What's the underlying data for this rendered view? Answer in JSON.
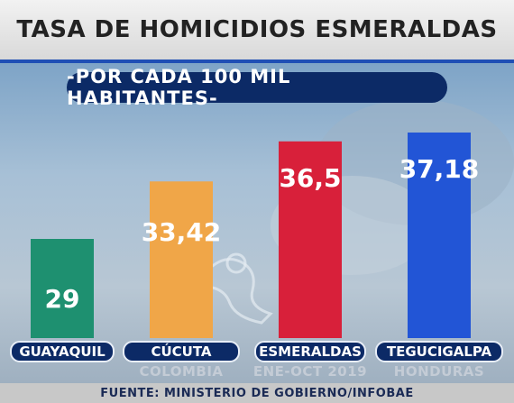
{
  "header": {
    "title": "TASA DE HOMICIDIOS ESMERALDAS",
    "subtitle": "-POR CADA 100 MIL HABITANTES-"
  },
  "footer": {
    "source": "FUENTE: MINISTERIO DE GOBIERNO/INFOBAE"
  },
  "chart_data": {
    "type": "bar",
    "title": "TASA DE HOMICIDIOS ESMERALDAS",
    "subtitle": "-POR CADA 100 MIL HABITANTES-",
    "categories": [
      "GUAYAQUIL",
      "CÚCUTA",
      "ESMERALDAS",
      "TEGUCIGALPA"
    ],
    "sublabels": [
      "",
      "COLOMBIA",
      "ENE-OCT 2019",
      "HONDURAS"
    ],
    "values": [
      29,
      33.42,
      36.5,
      37.18
    ],
    "value_labels": [
      "29",
      "33,42",
      "36,5",
      "37,18"
    ],
    "colors": [
      "#1e9070",
      "#f0a648",
      "#d8203a",
      "#2255d6"
    ],
    "ylim": [
      0,
      45
    ],
    "grid": false,
    "xlabel": "",
    "ylabel": ""
  }
}
